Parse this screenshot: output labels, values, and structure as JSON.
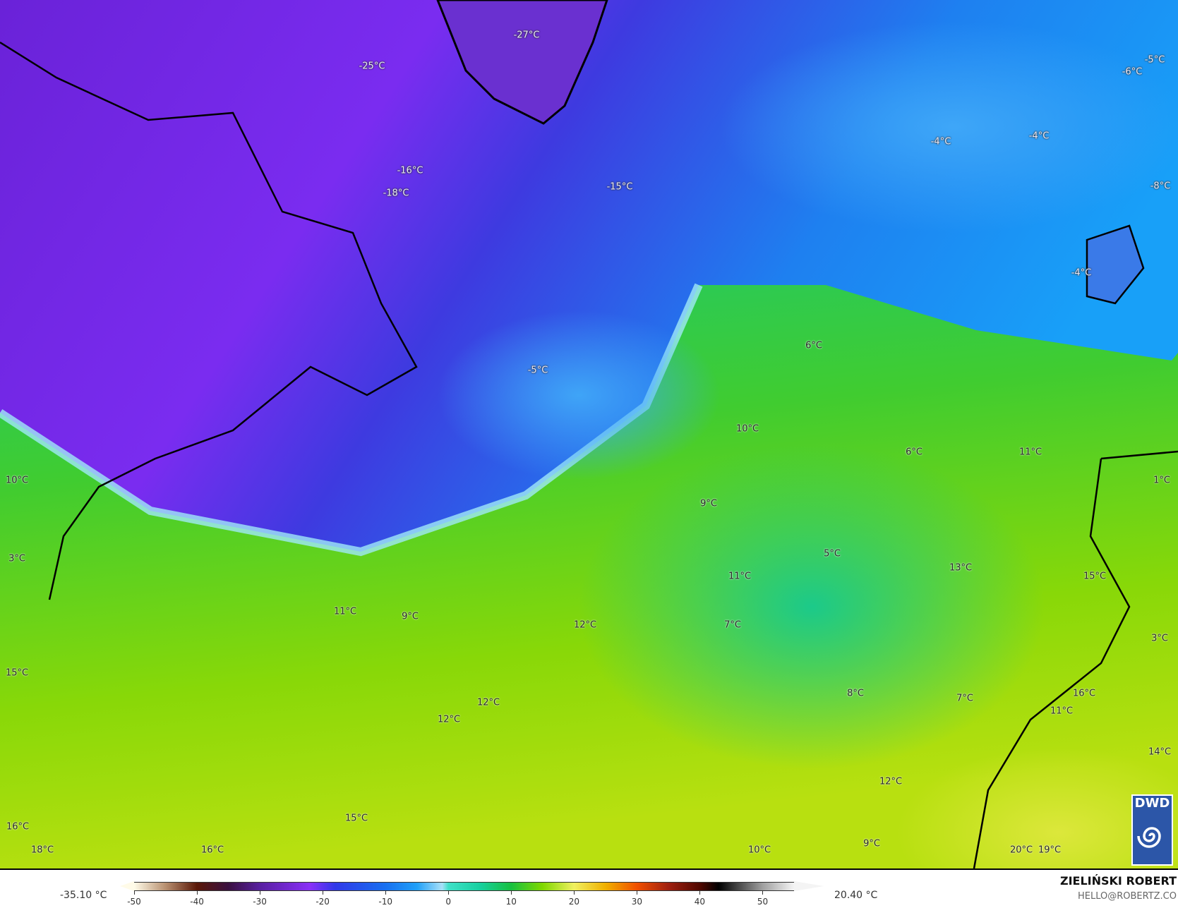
{
  "map": {
    "title": "",
    "temperature_labels": [
      "-27°C",
      "-25°C",
      "-5°C",
      "-6°C",
      "-4°C",
      "-4°C",
      "-16°C",
      "-18°C",
      "-15°C",
      "-8°C",
      "-4°C",
      "6°C",
      "-5°C",
      "10°C",
      "6°C",
      "11°C",
      "10°C",
      "1°C",
      "9°C",
      "3°C",
      "5°C",
      "13°C",
      "11°C",
      "15°C",
      "11°C",
      "9°C",
      "12°C",
      "7°C",
      "3°C",
      "15°C",
      "8°C",
      "16°C",
      "7°C",
      "12°C",
      "11°C",
      "12°C",
      "14°C",
      "12°C",
      "15°C",
      "16°C",
      "9°C",
      "18°C",
      "16°C",
      "10°C",
      "20°C",
      "19°C"
    ],
    "colors": {
      "cold": "#7a2cf0",
      "cool": "#1e9bf5",
      "zero": "#40e0c8",
      "mild": "#20c860",
      "warm": "#a8e000"
    },
    "logo": {
      "text": "DWD"
    }
  },
  "legend": {
    "min_label": "-35.10 °C",
    "max_label": "20.40 °C",
    "ticks": [
      "-50",
      "-40",
      "-30",
      "-20",
      "-10",
      "0",
      "10",
      "20",
      "30",
      "40",
      "50"
    ],
    "range": [
      -50,
      55
    ]
  },
  "credits": {
    "author": "ZIELIŃSKI ROBERT",
    "email": "HELLO@ROBERTZ.CO"
  }
}
